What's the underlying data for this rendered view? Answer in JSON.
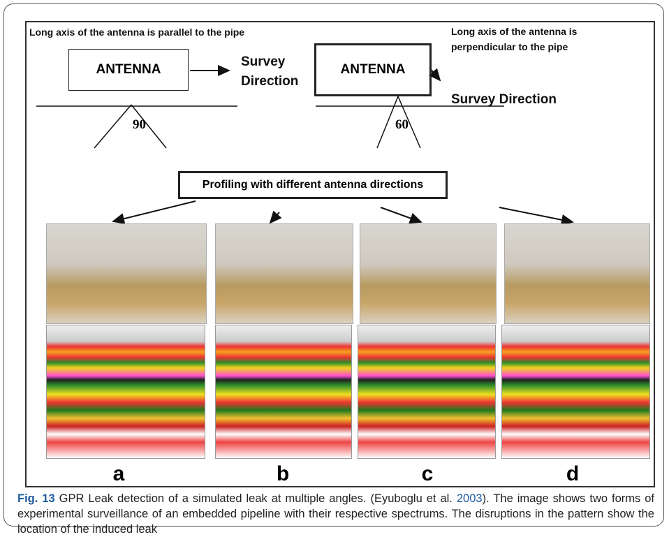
{
  "figure": {
    "left_diagram": {
      "note": "Long axis of the antenna is parallel to the pipe",
      "antenna": "ANTENNA",
      "direction_line1": "Survey",
      "direction_line2": "Direction",
      "angle": "90"
    },
    "right_diagram": {
      "note": "Long axis of the antenna is perpendicular to the pipe",
      "antenna": "ANTENNA",
      "direction": "Survey Direction",
      "angle": "60"
    },
    "profiling": "Profiling with different antenna directions",
    "panels": [
      "a",
      "b",
      "c",
      "d"
    ]
  },
  "caption": {
    "label": "Fig. 13",
    "text_before": " GPR Leak detection of a simulated leak at multiple angles. (Eyuboglu et al. ",
    "year": "2003",
    "text_after": "). The image shows two forms of experimental surveillance of an embedded pipeline with their respective spectrums. The disruptions in the pattern show the location of the induced leak"
  }
}
